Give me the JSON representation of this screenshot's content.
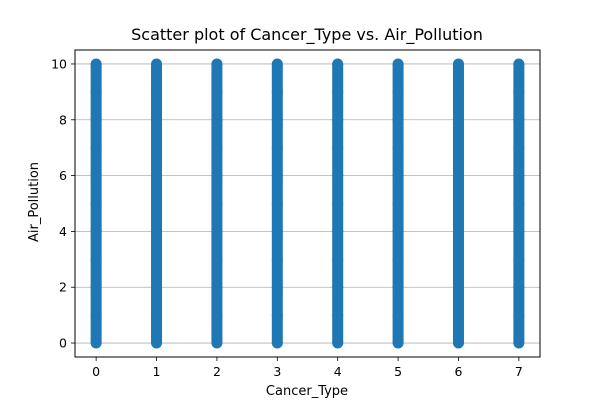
{
  "chart_data": {
    "type": "scatter",
    "title": "Scatter plot of Cancer_Type vs. Air_Pollution",
    "xlabel": "Cancer_Type",
    "ylabel": "Air_Pollution",
    "x_ticks": [
      0,
      1,
      2,
      3,
      4,
      5,
      6,
      7
    ],
    "y_ticks": [
      0,
      2,
      4,
      6,
      8,
      10
    ],
    "xlim": [
      -0.35,
      7.35
    ],
    "ylim": [
      -0.5,
      10.5
    ],
    "grid": "y",
    "point_color": "#1f77b4",
    "series": [
      {
        "x": [
          0,
          0,
          0,
          0,
          0,
          0,
          0,
          0,
          0,
          0,
          0,
          1,
          1,
          1,
          1,
          1,
          1,
          1,
          1,
          1,
          1,
          1,
          2,
          2,
          2,
          2,
          2,
          2,
          2,
          2,
          2,
          2,
          2,
          3,
          3,
          3,
          3,
          3,
          3,
          3,
          3,
          3,
          3,
          3,
          4,
          4,
          4,
          4,
          4,
          4,
          4,
          4,
          4,
          4,
          4,
          5,
          5,
          5,
          5,
          5,
          5,
          5,
          5,
          5,
          5,
          5,
          6,
          6,
          6,
          6,
          6,
          6,
          6,
          6,
          6,
          6,
          6,
          7,
          7,
          7,
          7,
          7,
          7,
          7,
          7,
          7,
          7,
          7
        ],
        "y": [
          0,
          1,
          2,
          3,
          4,
          5,
          6,
          7,
          8,
          9,
          10,
          0,
          1,
          2,
          3,
          4,
          5,
          6,
          7,
          8,
          9,
          10,
          0,
          1,
          2,
          3,
          4,
          5,
          6,
          7,
          8,
          9,
          10,
          0,
          1,
          2,
          3,
          4,
          5,
          6,
          7,
          8,
          9,
          10,
          0,
          1,
          2,
          3,
          4,
          5,
          6,
          7,
          8,
          9,
          10,
          0,
          1,
          2,
          3,
          4,
          5,
          6,
          7,
          8,
          9,
          10,
          0,
          1,
          2,
          3,
          4,
          5,
          6,
          7,
          8,
          9,
          10,
          0,
          1,
          2,
          3,
          4,
          5,
          6,
          7,
          8,
          9,
          10
        ]
      }
    ]
  }
}
